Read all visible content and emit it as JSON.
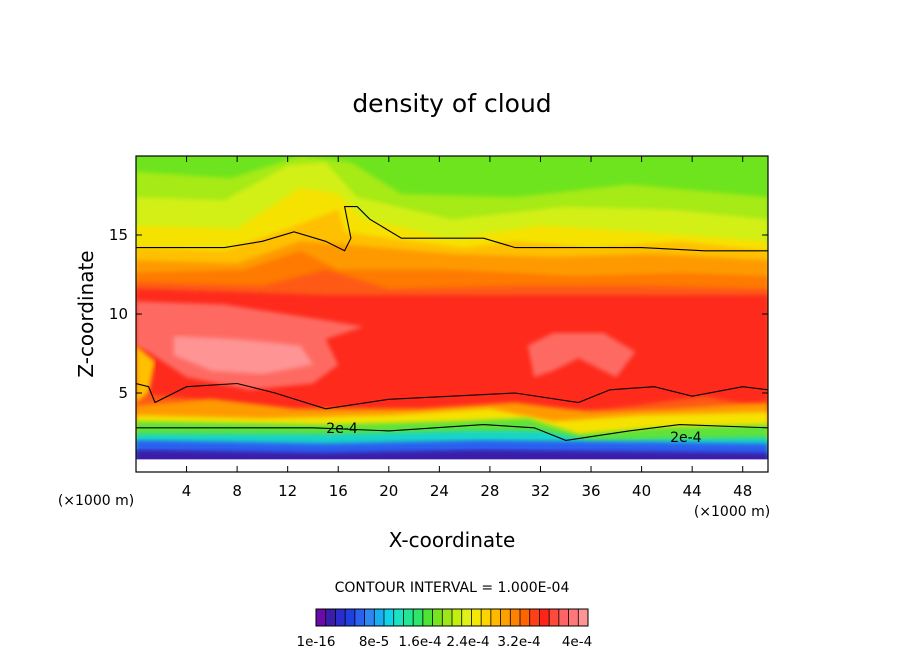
{
  "chart_data": {
    "type": "heatmap",
    "title": "density of cloud",
    "xlabel": "X-coordinate",
    "ylabel": "Z-coordinate",
    "x_unit_left": "(×1000 m)",
    "x_unit_right": "(×1000 m)",
    "xlim": [
      0,
      50
    ],
    "ylim": [
      0,
      20
    ],
    "x_ticks": [
      4,
      8,
      12,
      16,
      20,
      24,
      28,
      32,
      36,
      40,
      44,
      48
    ],
    "y_ticks": [
      5,
      10,
      15
    ],
    "contour_interval_label": "CONTOUR INTERVAL = 1.000E-04",
    "contour_labels": [
      {
        "text": "2e-4",
        "x": 16.3,
        "z": 2.8
      },
      {
        "text": "2e-4",
        "x": 43.5,
        "z": 2.2
      }
    ],
    "colorbar": {
      "min": 1e-16,
      "max": 0.00044,
      "tick_labels": [
        "1e-16",
        "8e-5",
        "1.6e-4",
        "2.4e-4",
        "3.2e-4",
        "4e-4"
      ],
      "colors": [
        "#6a0aa8",
        "#3b1ea8",
        "#2a2ccc",
        "#1f3fe0",
        "#2a5ff0",
        "#2d86f2",
        "#18aef2",
        "#10d2e8",
        "#19e3c0",
        "#20e696",
        "#2ee46a",
        "#4ee436",
        "#78e41e",
        "#9ee61a",
        "#c2ee10",
        "#e0f018",
        "#f4e808",
        "#fcd400",
        "#feba00",
        "#fea000",
        "#fe8200",
        "#fe6400",
        "#fe4018",
        "#fe2418",
        "#fe4a3c",
        "#fe6464",
        "#fe7878",
        "#fe9494"
      ]
    }
  }
}
